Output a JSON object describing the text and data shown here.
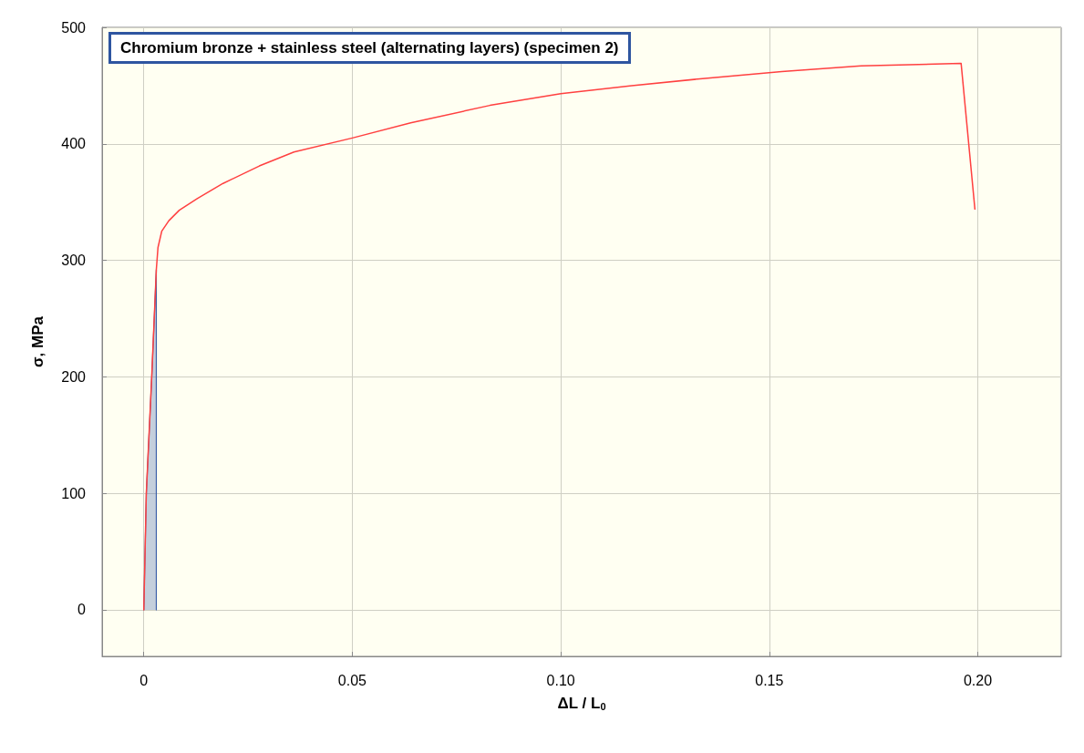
{
  "chart_data": {
    "type": "line",
    "title": "Chromium bronze + stainless steel (alternating layers) (specimen 2)",
    "xlabel": "ΔL / L$_{0}$",
    "ylabel": "σ, MPa",
    "series": [
      {
        "type": "area",
        "color": "#3a5fa8",
        "x": [
          0,
          0.0006,
          0.0019,
          0.003,
          0.003
        ],
        "values": [
          0,
          100,
          200,
          292,
          0
        ]
      },
      {
        "color": "#ff4040",
        "x": [
          0,
          0.0006,
          0.0019,
          0.003,
          0.0034,
          0.0043,
          0.006,
          0.0085,
          0.0128,
          0.019,
          0.0277,
          0.036,
          0.05,
          0.064,
          0.083,
          0.1,
          0.117,
          0.134,
          0.153,
          0.172,
          0.196,
          0.1993
        ],
        "values": [
          0,
          100,
          200,
          292,
          311,
          325,
          334,
          343,
          353,
          366,
          381,
          393,
          405,
          418,
          433,
          443,
          450,
          456,
          462,
          467,
          469,
          344
        ]
      }
    ],
    "xlim": [
      -0.01,
      0.22
    ],
    "xticks": [
      0,
      {
        "value": 0.05,
        "label": "0.05"
      },
      {
        "value": 0.1,
        "label": "0.10"
      },
      {
        "value": 0.15,
        "label": "0.15"
      },
      {
        "value": 0.2,
        "label": "0.20"
      }
    ],
    "ylim": [
      -40,
      500
    ],
    "yticks": [
      0,
      100,
      200,
      300,
      400,
      500
    ],
    "grid": true,
    "marker": "none",
    "line_style": "solid"
  }
}
